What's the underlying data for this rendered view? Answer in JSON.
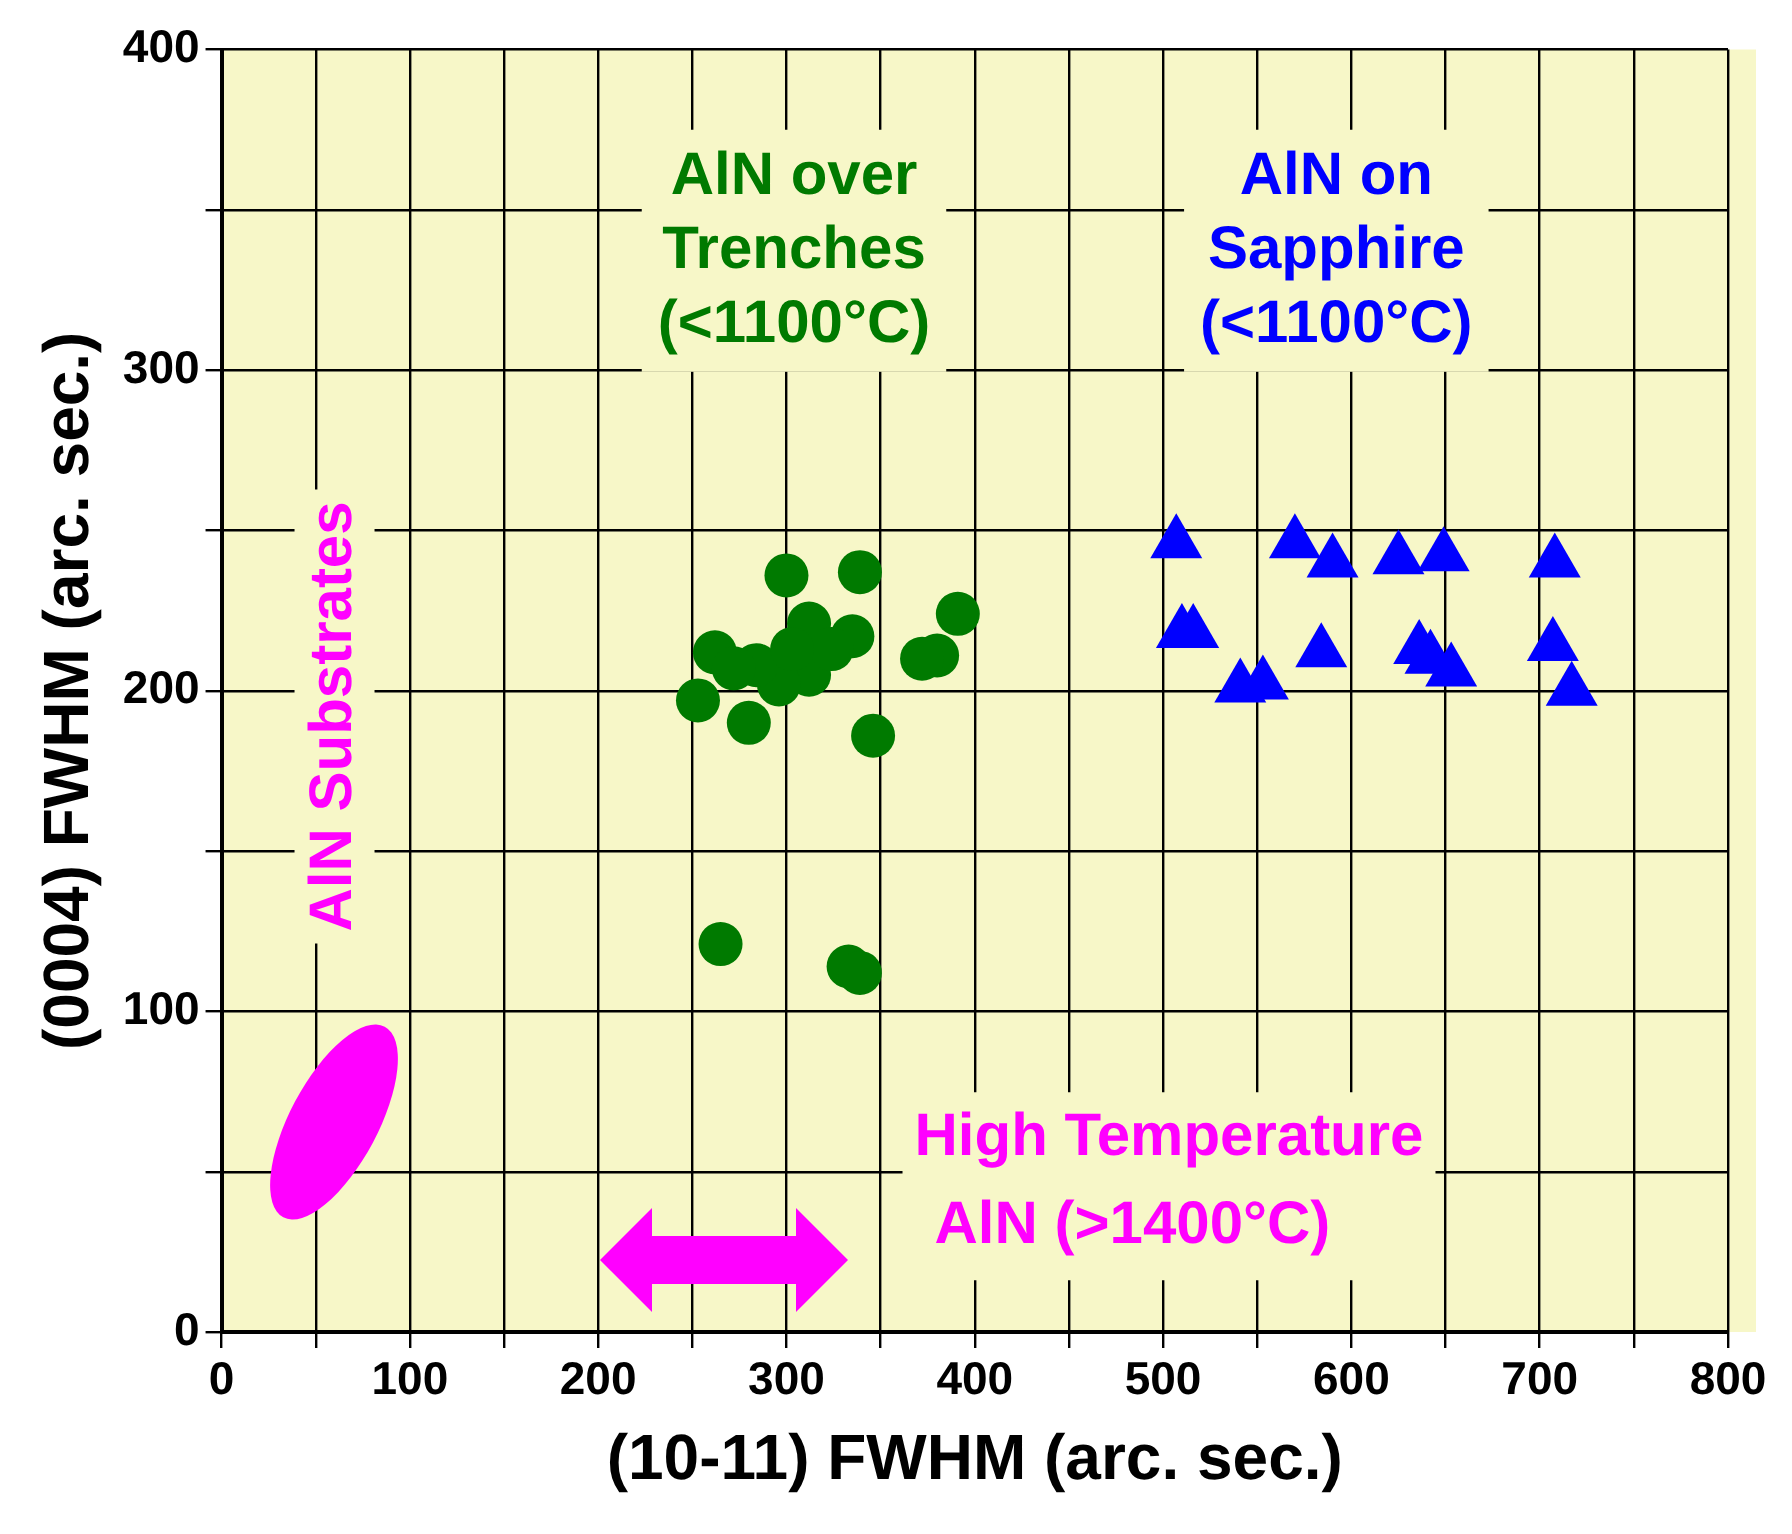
{
  "chart_data": {
    "type": "scatter",
    "xlabel": "(10-11) FWHM (arc. sec.)",
    "ylabel": "(0004) FWHM (arc. sec.)",
    "xlim": [
      0,
      800
    ],
    "ylim": [
      0,
      400
    ],
    "xticks": [
      0,
      {
        "value": 50,
        "label": null
      },
      100,
      {
        "value": 150,
        "label": null
      },
      200,
      {
        "value": 250,
        "label": null
      },
      300,
      {
        "value": 350,
        "label": null
      },
      400,
      {
        "value": 450,
        "label": null
      },
      500,
      {
        "value": 550,
        "label": null
      },
      600,
      {
        "value": 650,
        "label": null
      },
      700,
      {
        "value": 750,
        "label": null
      },
      800
    ],
    "yticks": [
      0,
      {
        "value": 50,
        "label": null
      },
      100,
      {
        "value": 150,
        "label": null
      },
      200,
      {
        "value": 250,
        "label": null
      },
      300,
      {
        "value": 350,
        "label": null
      },
      400
    ],
    "grid": true,
    "legend": false,
    "series": [
      {
        "name": "AlN over Trenches (<1100°C)",
        "color": "#007a00",
        "marker": "circle",
        "x": [
          300,
          339,
          391,
          380,
          372,
          262,
          253,
          280,
          346,
          265,
          333,
          339,
          312,
          335,
          312,
          296,
          284,
          272,
          324,
          303
        ],
        "values": [
          236,
          237,
          224,
          211,
          210,
          212,
          197,
          190,
          186,
          121,
          114,
          112,
          221,
          217,
          205,
          202,
          208,
          207,
          213,
          213
        ]
      },
      {
        "name": "AlN on Sapphire (<1100°C)",
        "color": "#0000ff",
        "marker": "triangle",
        "x": [
          507,
          570,
          590,
          625,
          649,
          708,
          510,
          516,
          541,
          553,
          584,
          636,
          642,
          653,
          707,
          717
        ],
        "values": [
          246,
          246,
          240,
          241,
          242,
          240,
          218,
          218,
          201,
          202,
          212,
          213,
          210,
          206,
          214,
          200
        ]
      }
    ],
    "annotations": [
      "AlN Substrates",
      "High Temperature AlN (>1400°C)"
    ]
  }
}
